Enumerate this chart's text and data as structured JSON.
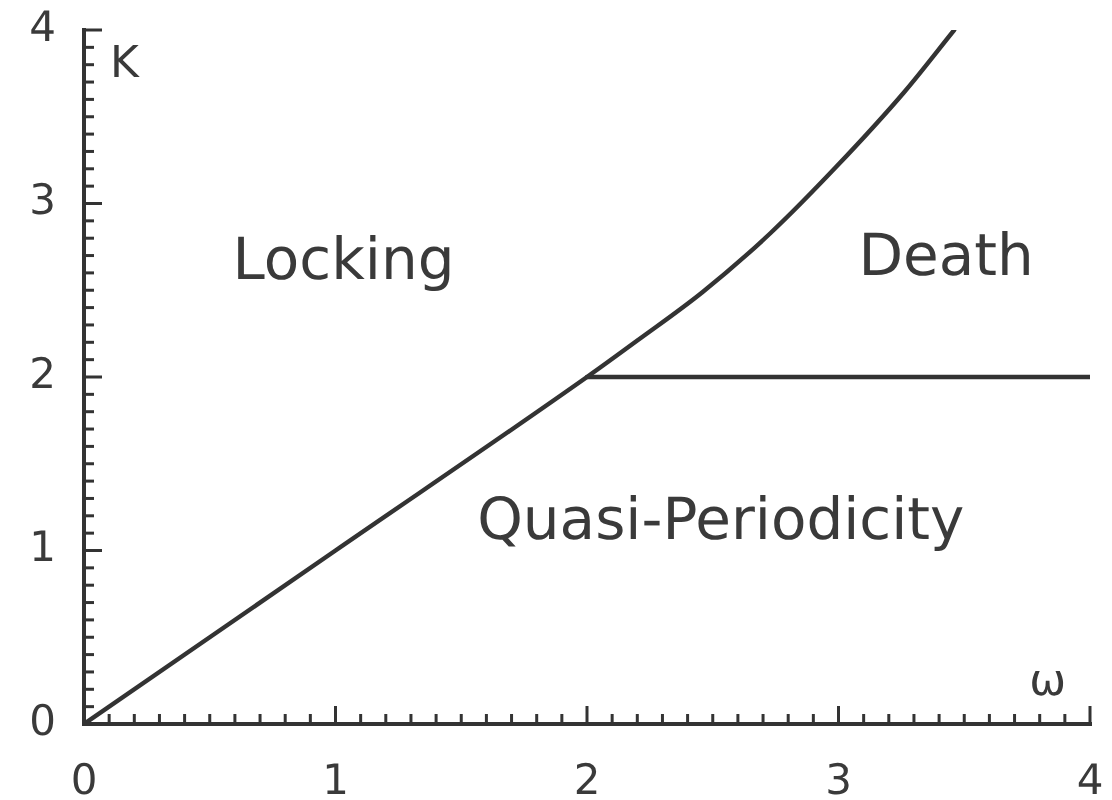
{
  "chart_data": {
    "type": "line",
    "xlabel": "ω",
    "ylabel": "K",
    "annotations": [
      "Locking",
      "Death",
      "Quasi-Periodicity"
    ],
    "series": [
      {
        "color": "#333333",
        "x": [
          0,
          1,
          2,
          2.2,
          2.46,
          2.73,
          2.99,
          3.26,
          3.46
        ],
        "values": [
          0,
          1,
          2,
          2.21,
          2.49,
          2.83,
          3.21,
          3.64,
          4.0
        ]
      },
      {
        "color": "#333333",
        "x": [
          2,
          4
        ],
        "values": [
          2,
          2
        ]
      }
    ],
    "xlim": [
      0,
      4
    ],
    "ylim": [
      0,
      4
    ],
    "xticks": [
      0,
      {
        "value": 0.1,
        "label": null
      },
      {
        "value": 0.2,
        "label": null
      },
      {
        "value": 0.3,
        "label": null
      },
      {
        "value": 0.4,
        "label": null
      },
      {
        "value": 0.5,
        "label": null
      },
      {
        "value": 0.6,
        "label": null
      },
      {
        "value": 0.7,
        "label": null
      },
      {
        "value": 0.8,
        "label": null
      },
      {
        "value": 0.9,
        "label": null
      },
      1,
      {
        "value": 1.1,
        "label": null
      },
      {
        "value": 1.2,
        "label": null
      },
      {
        "value": 1.3,
        "label": null
      },
      {
        "value": 1.4,
        "label": null
      },
      {
        "value": 1.5,
        "label": null
      },
      {
        "value": 1.6,
        "label": null
      },
      {
        "value": 1.7,
        "label": null
      },
      {
        "value": 1.8,
        "label": null
      },
      {
        "value": 1.9,
        "label": null
      },
      2,
      {
        "value": 2.1,
        "label": null
      },
      {
        "value": 2.2,
        "label": null
      },
      {
        "value": 2.3,
        "label": null
      },
      {
        "value": 2.4,
        "label": null
      },
      {
        "value": 2.5,
        "label": null
      },
      {
        "value": 2.6,
        "label": null
      },
      {
        "value": 2.7,
        "label": null
      },
      {
        "value": 2.8,
        "label": null
      },
      {
        "value": 2.9,
        "label": null
      },
      3,
      {
        "value": 3.1,
        "label": null
      },
      {
        "value": 3.2,
        "label": null
      },
      {
        "value": 3.3,
        "label": null
      },
      {
        "value": 3.4,
        "label": null
      },
      {
        "value": 3.5,
        "label": null
      },
      {
        "value": 3.6,
        "label": null
      },
      {
        "value": 3.7,
        "label": null
      },
      {
        "value": 3.8,
        "label": null
      },
      {
        "value": 3.9,
        "label": null
      },
      4
    ],
    "yticks": [
      0,
      {
        "value": 0.1,
        "label": null
      },
      {
        "value": 0.2,
        "label": null
      },
      {
        "value": 0.3,
        "label": null
      },
      {
        "value": 0.4,
        "label": null
      },
      {
        "value": 0.5,
        "label": null
      },
      {
        "value": 0.6,
        "label": null
      },
      {
        "value": 0.7,
        "label": null
      },
      {
        "value": 0.8,
        "label": null
      },
      {
        "value": 0.9,
        "label": null
      },
      1,
      {
        "value": 1.1,
        "label": null
      },
      {
        "value": 1.2,
        "label": null
      },
      {
        "value": 1.3,
        "label": null
      },
      {
        "value": 1.4,
        "label": null
      },
      {
        "value": 1.5,
        "label": null
      },
      {
        "value": 1.6,
        "label": null
      },
      {
        "value": 1.7,
        "label": null
      },
      {
        "value": 1.8,
        "label": null
      },
      {
        "value": 1.9,
        "label": null
      },
      2,
      {
        "value": 2.1,
        "label": null
      },
      {
        "value": 2.2,
        "label": null
      },
      {
        "value": 2.3,
        "label": null
      },
      {
        "value": 2.4,
        "label": null
      },
      {
        "value": 2.5,
        "label": null
      },
      {
        "value": 2.6,
        "label": null
      },
      {
        "value": 2.7,
        "label": null
      },
      {
        "value": 2.8,
        "label": null
      },
      {
        "value": 2.9,
        "label": null
      },
      3,
      {
        "value": 3.1,
        "label": null
      },
      {
        "value": 3.2,
        "label": null
      },
      {
        "value": 3.3,
        "label": null
      },
      {
        "value": 3.4,
        "label": null
      },
      {
        "value": 3.5,
        "label": null
      },
      {
        "value": 3.6,
        "label": null
      },
      {
        "value": 3.7,
        "label": null
      },
      {
        "value": 3.8,
        "label": null
      },
      {
        "value": 3.9,
        "label": null
      },
      4
    ],
    "grid": false,
    "legend": false,
    "marker": "none",
    "line_style": "solid"
  }
}
